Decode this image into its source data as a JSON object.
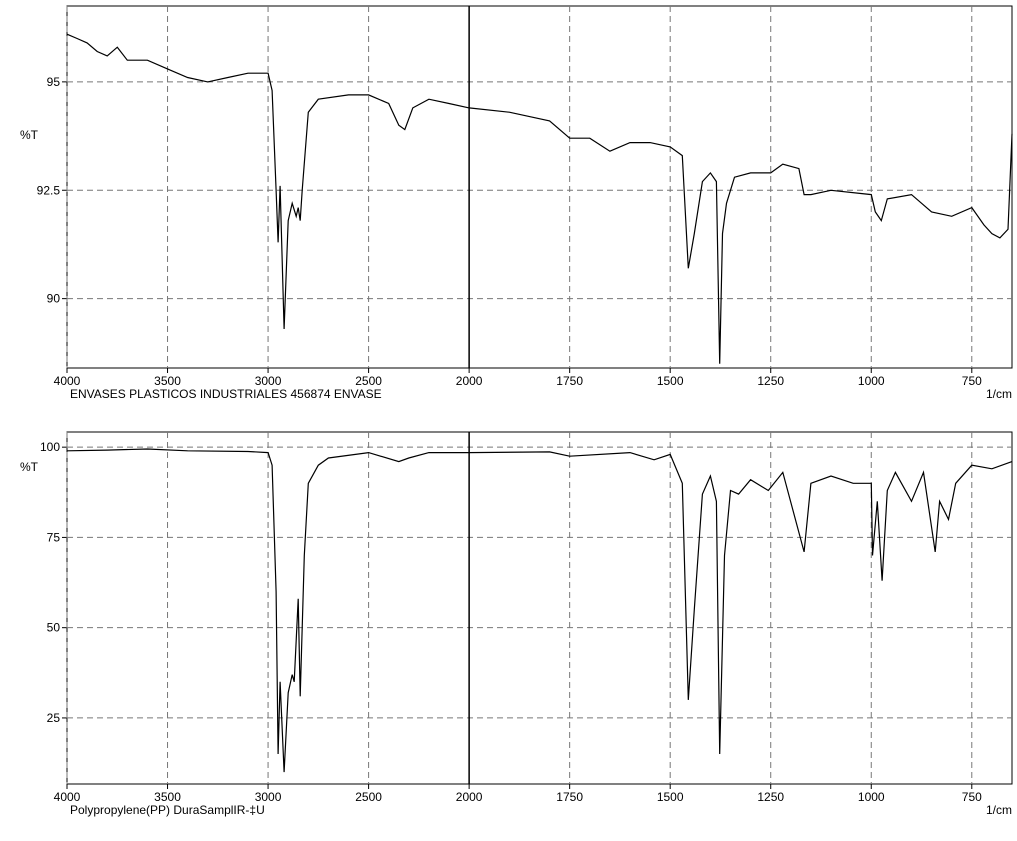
{
  "chart_data": [
    {
      "type": "line",
      "y_label": "%T",
      "x_label": "ENVASES PLASTICOS INDUSTRIALES  456874  ENVASE",
      "x_unit": "1/cm",
      "x_break": 2000,
      "grid": true,
      "color": "#000000",
      "xlim": [
        4000,
        650
      ],
      "xticks": [
        4000,
        3500,
        3000,
        2500,
        2000,
        1750,
        1500,
        1250,
        1000,
        750
      ],
      "ylim": [
        88.4,
        96.75
      ],
      "yticks": [
        90,
        92.5,
        95
      ],
      "x": [
        4000,
        3950,
        3900,
        3850,
        3800,
        3750,
        3700,
        3600,
        3500,
        3400,
        3300,
        3200,
        3100,
        3000,
        2980,
        2960,
        2950,
        2940,
        2920,
        2900,
        2880,
        2860,
        2850,
        2840,
        2830,
        2800,
        2750,
        2600,
        2500,
        2400,
        2350,
        2320,
        2280,
        2200,
        2100,
        2000,
        1900,
        1800,
        1750,
        1700,
        1650,
        1600,
        1550,
        1500,
        1470,
        1455,
        1440,
        1420,
        1400,
        1385,
        1377,
        1370,
        1360,
        1340,
        1300,
        1250,
        1220,
        1180,
        1167,
        1150,
        1100,
        1000,
        990,
        975,
        960,
        900,
        850,
        800,
        750,
        720,
        700,
        680,
        660,
        650
      ],
      "values": [
        96.1,
        96.0,
        95.9,
        95.7,
        95.6,
        95.8,
        95.5,
        95.5,
        95.3,
        95.1,
        95.0,
        95.1,
        95.2,
        95.2,
        94.8,
        92.5,
        91.3,
        92.6,
        89.3,
        91.8,
        92.2,
        91.9,
        92.1,
        91.8,
        92.5,
        94.3,
        94.6,
        94.7,
        94.7,
        94.5,
        94.0,
        93.9,
        94.4,
        94.6,
        94.5,
        94.4,
        94.3,
        94.1,
        93.7,
        93.7,
        93.4,
        93.6,
        93.6,
        93.5,
        93.3,
        90.7,
        91.5,
        92.7,
        92.9,
        92.7,
        88.5,
        91.5,
        92.2,
        92.8,
        92.9,
        92.9,
        93.1,
        93.0,
        92.4,
        92.4,
        92.5,
        92.4,
        92.0,
        91.8,
        92.3,
        92.4,
        92.0,
        91.9,
        92.1,
        91.7,
        91.5,
        91.4,
        91.6,
        93.8
      ]
    },
    {
      "type": "line",
      "y_label": "%T",
      "x_label": "Polypropylene(PP)  DuraSamplIR-‡U",
      "x_unit": "1/cm",
      "x_break": 2000,
      "grid": true,
      "color": "#000000",
      "xlim": [
        4000,
        650
      ],
      "xticks": [
        4000,
        3500,
        3000,
        2500,
        2000,
        1750,
        1500,
        1250,
        1000,
        750
      ],
      "ylim": [
        6.7,
        104.2
      ],
      "yticks": [
        25,
        50,
        75,
        100
      ],
      "x": [
        4000,
        3800,
        3600,
        3400,
        3100,
        3000,
        2980,
        2960,
        2950,
        2940,
        2920,
        2900,
        2880,
        2870,
        2850,
        2840,
        2820,
        2800,
        2750,
        2700,
        2500,
        2350,
        2300,
        2200,
        2000,
        1800,
        1750,
        1600,
        1540,
        1500,
        1470,
        1455,
        1440,
        1420,
        1400,
        1385,
        1377,
        1365,
        1350,
        1330,
        1300,
        1256,
        1220,
        1167,
        1150,
        1100,
        1045,
        1000,
        997,
        985,
        973,
        960,
        940,
        900,
        870,
        841,
        830,
        808,
        790,
        750,
        700,
        650
      ],
      "values": [
        99,
        99.2,
        99.5,
        99,
        98.8,
        98.5,
        95,
        60,
        15,
        35,
        10,
        32,
        37,
        35,
        58,
        31,
        70,
        90,
        95,
        97,
        98.5,
        96,
        97,
        98.5,
        98.5,
        98.7,
        97.5,
        98.5,
        96.5,
        98,
        90,
        30,
        55,
        87,
        92,
        85,
        15,
        70,
        88,
        87,
        91,
        88,
        93,
        71,
        90,
        92,
        90,
        90,
        70,
        85,
        63,
        88,
        93,
        85,
        93,
        71,
        85,
        80,
        90,
        95,
        94,
        96
      ]
    }
  ]
}
